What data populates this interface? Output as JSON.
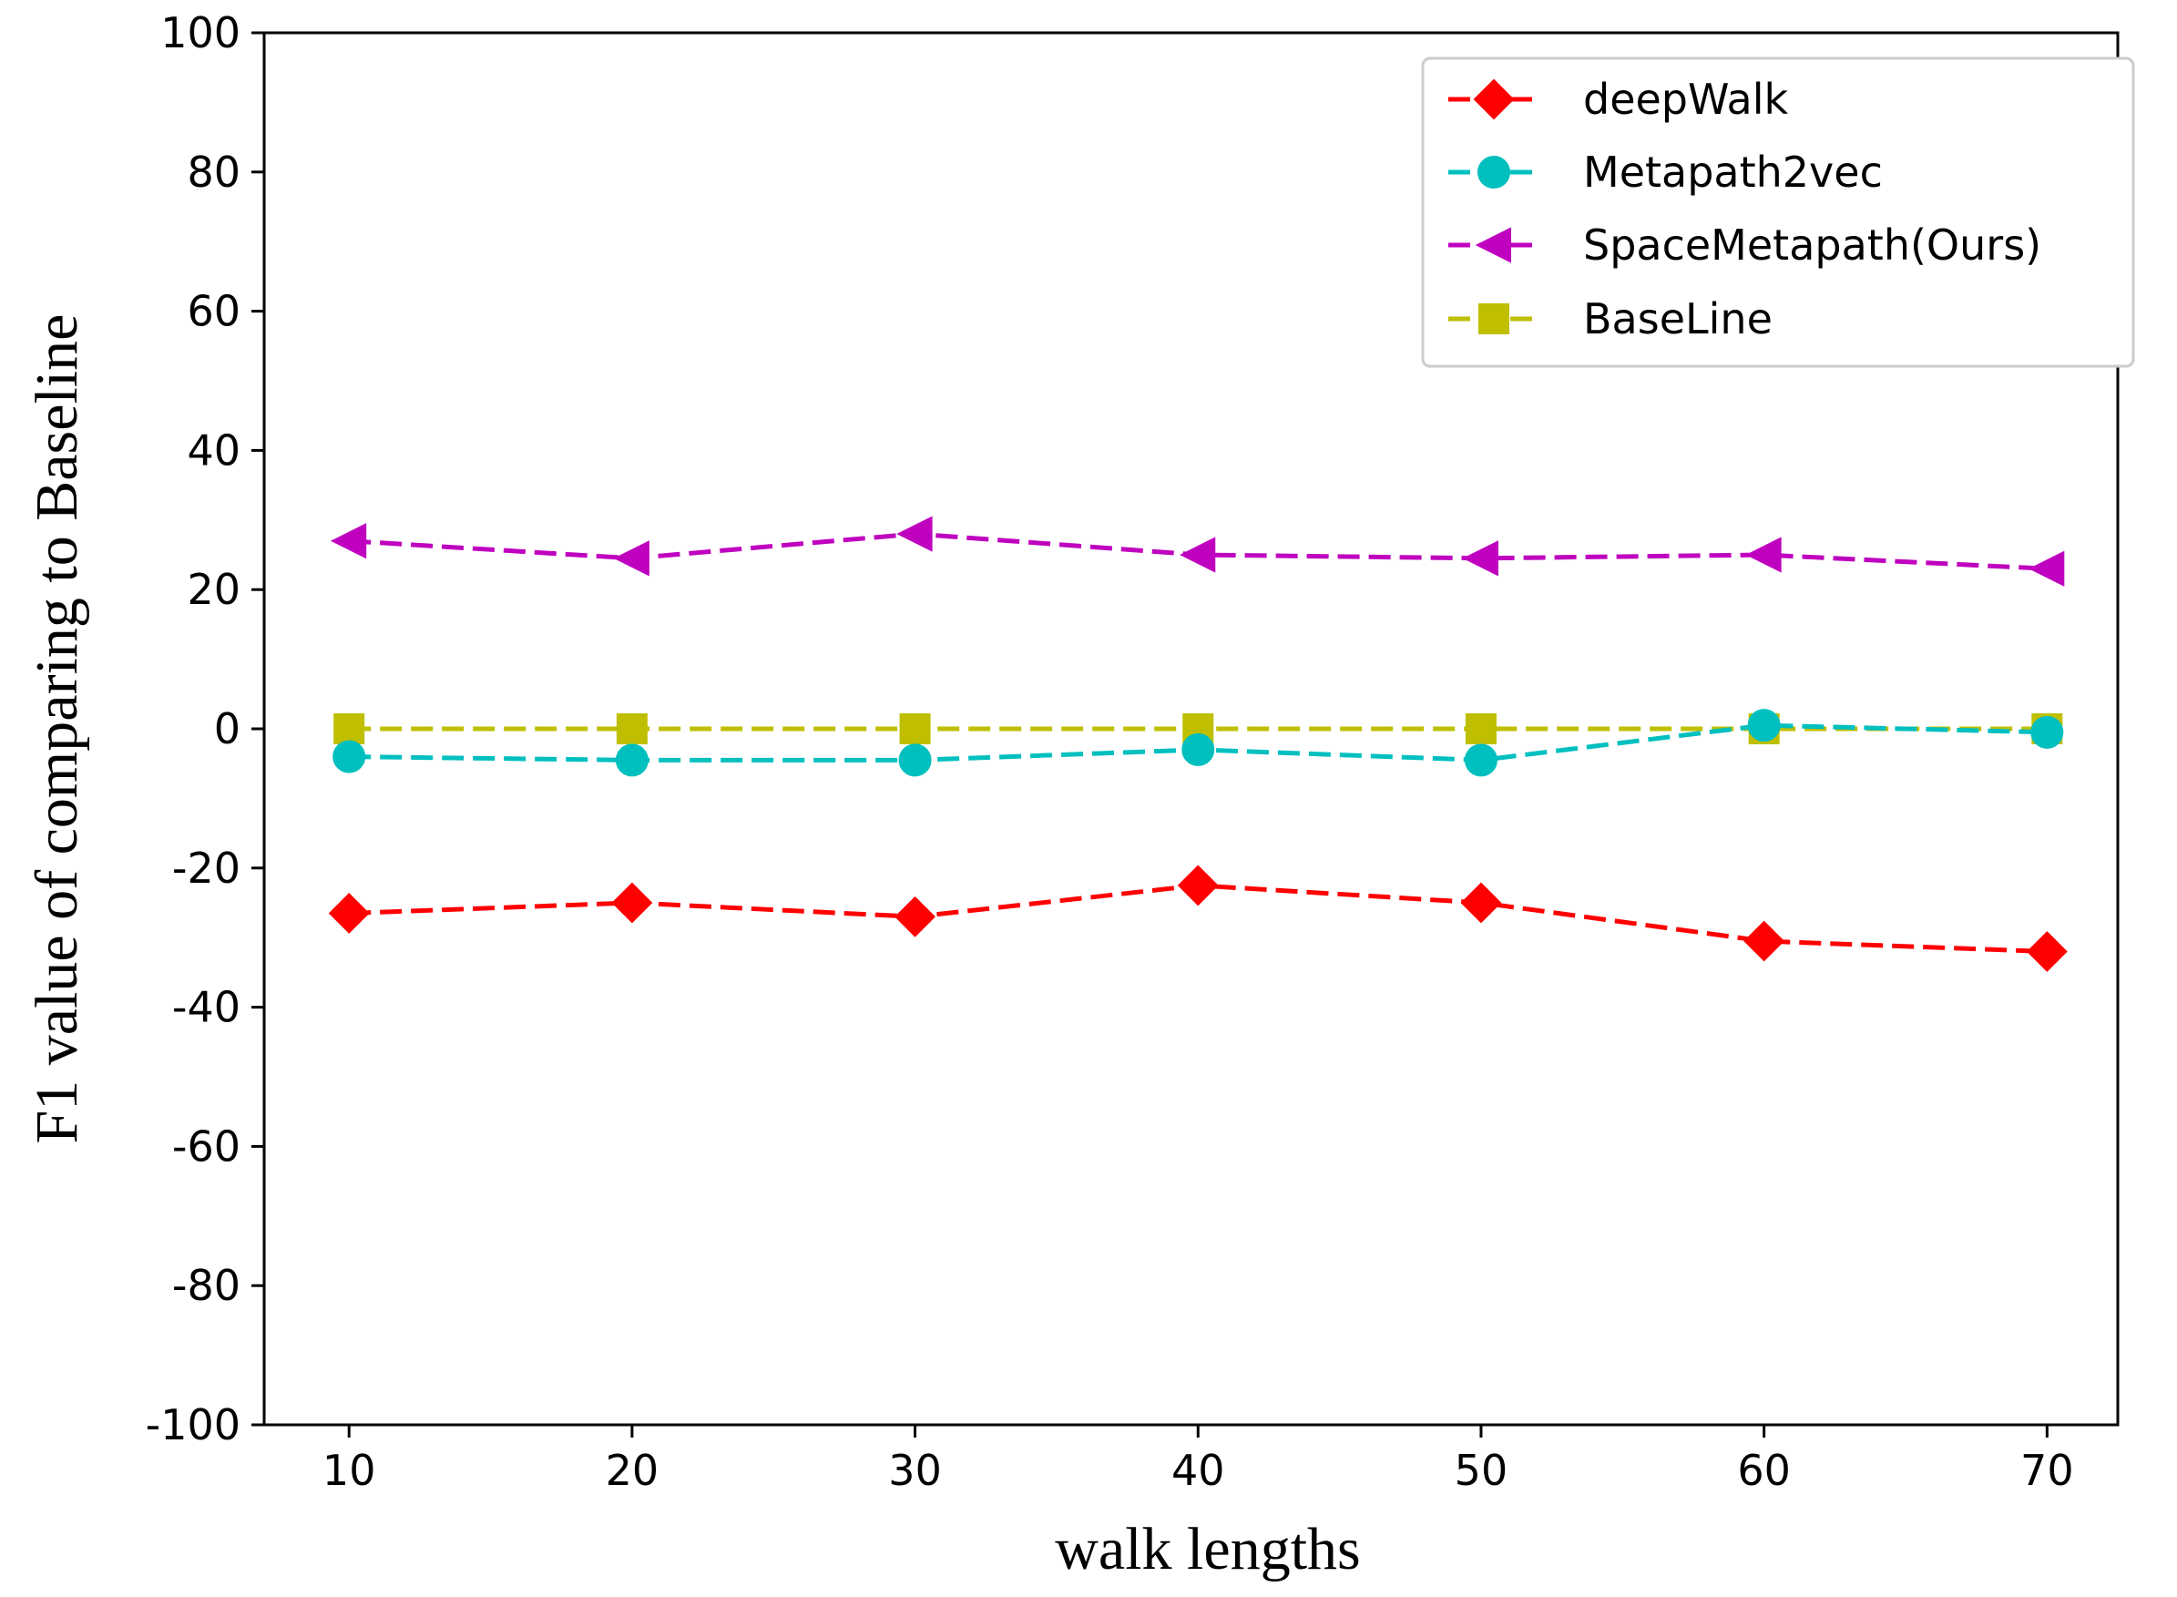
{
  "chart_data": {
    "type": "line",
    "title": "",
    "xlabel": "walk lengths",
    "ylabel": "F1 value of comparing to Baseline",
    "x": [
      10,
      20,
      30,
      40,
      50,
      60,
      70
    ],
    "xticks": [
      10,
      20,
      30,
      40,
      50,
      60,
      70
    ],
    "yticks": [
      -100,
      -80,
      -60,
      -40,
      -20,
      0,
      20,
      40,
      60,
      80,
      100
    ],
    "xlim": [
      7,
      72.5
    ],
    "ylim": [
      -100,
      100
    ],
    "grid": false,
    "legend_position": "top-right",
    "series": [
      {
        "name": "deepWalk",
        "color": "#ff0000",
        "marker": "diamond",
        "line_style": "dashed",
        "values": [
          -26.5,
          -25,
          -27,
          -22.5,
          -25,
          -30.5,
          -32
        ]
      },
      {
        "name": "Metapath2vec",
        "color": "#00bfbf",
        "marker": "circle",
        "line_style": "dashed",
        "values": [
          -4,
          -4.5,
          -4.5,
          -3,
          -4.5,
          0.5,
          -0.5
        ]
      },
      {
        "name": "SpaceMetapath(Ours)",
        "color": "#bf00bf",
        "marker": "triangle-left",
        "line_style": "dashed",
        "values": [
          27,
          24.5,
          28,
          25,
          24.5,
          25,
          23
        ]
      },
      {
        "name": "BaseLine",
        "color": "#bfbf00",
        "marker": "square",
        "line_style": "dashed",
        "values": [
          0,
          0,
          0,
          0,
          0,
          0,
          0
        ]
      }
    ]
  }
}
